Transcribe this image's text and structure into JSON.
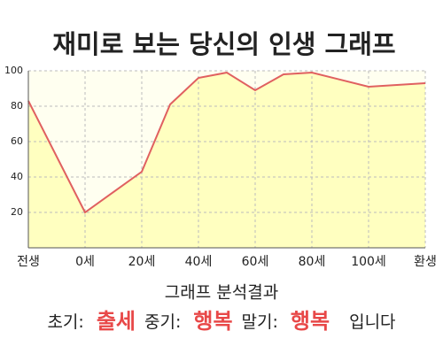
{
  "chart_data": {
    "type": "area",
    "title": "재미로 보는 당신의 인생 그래프",
    "x": [
      -20,
      0,
      20,
      30,
      40,
      50,
      60,
      70,
      80,
      100,
      120
    ],
    "values": [
      83,
      20,
      43,
      81,
      96,
      99,
      89,
      98,
      99,
      91,
      93
    ],
    "color": "#e06060",
    "fill_color": "#ffffc0",
    "background": "#fffff0",
    "xlim": [
      -20,
      120
    ],
    "xticks": [
      {
        "value": -20,
        "label": "전생"
      },
      {
        "value": 0,
        "label": "0세"
      },
      {
        "value": 20,
        "label": "20세"
      },
      {
        "value": 40,
        "label": "40세"
      },
      {
        "value": 60,
        "label": "60세"
      },
      {
        "value": 80,
        "label": "80세"
      },
      {
        "value": 100,
        "label": "100세"
      },
      {
        "value": 120,
        "label": "환생"
      }
    ],
    "ylim": [
      0,
      100
    ],
    "yticks": [
      20,
      40,
      60,
      80,
      100
    ],
    "grid": true,
    "analysis": {
      "title": "그래프 분석결과",
      "items": [
        {
          "label": "초기:",
          "value": "출세"
        },
        {
          "label": "중기:",
          "value": "행복"
        },
        {
          "label": "말기:",
          "value": "행복"
        }
      ],
      "ending": "입니다"
    }
  }
}
